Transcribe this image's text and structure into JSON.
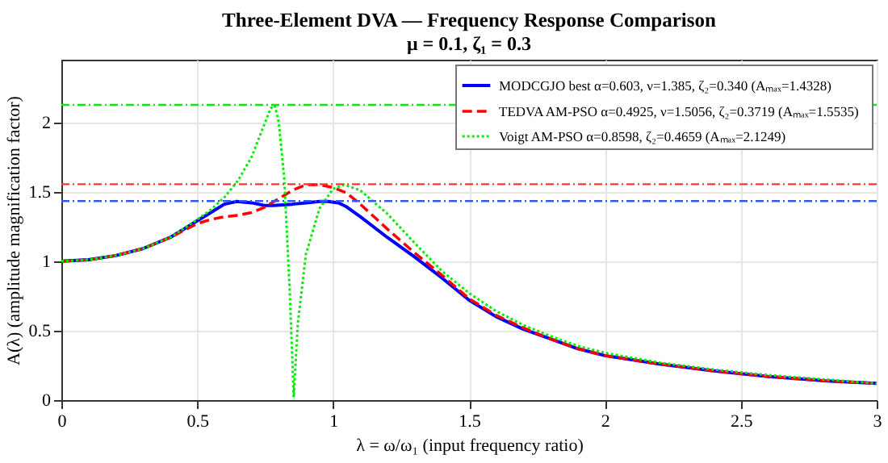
{
  "chart_data": {
    "type": "line",
    "title": "Three-Element DVA — Frequency Response Comparison",
    "subtitle": "μ = 0.1,  ζ₁ = 0.3",
    "xlabel": "λ = ω/ω₁   (input frequency ratio)",
    "ylabel": "A(λ)   (amplitude magnification factor)",
    "xlim": [
      0,
      3
    ],
    "xticks": [
      0,
      0.5,
      1,
      1.5,
      2,
      2.5,
      3
    ],
    "ylim": [
      0,
      2.45
    ],
    "yticks": [
      0,
      0.5,
      1,
      1.5,
      2
    ],
    "grid": true,
    "legend": "top right",
    "marker": "none",
    "series": [
      {
        "name": "MODCGJO best  α=0.603, ν=1.385, ζ₂=0.340  (Aₘₐₓ=1.4328)",
        "color": "#0000ff",
        "line_style": "solid",
        "x": [
          0,
          0.1,
          0.2,
          0.3,
          0.4,
          0.5,
          0.55,
          0.6,
          0.645,
          0.7,
          0.75,
          0.78,
          0.85,
          0.9,
          0.95,
          0.98,
          1.02,
          1.05,
          1.1,
          1.2,
          1.3,
          1.4,
          1.5,
          1.6,
          1.7,
          1.8,
          1.9,
          2.0,
          2.2,
          2.4,
          2.6,
          2.8,
          3.0
        ],
        "values": [
          1,
          1.01,
          1.04,
          1.09,
          1.17,
          1.29,
          1.35,
          1.41,
          1.43,
          1.42,
          1.4,
          1.4,
          1.41,
          1.42,
          1.43,
          1.43,
          1.42,
          1.39,
          1.32,
          1.17,
          1.03,
          0.88,
          0.72,
          0.6,
          0.51,
          0.44,
          0.37,
          0.32,
          0.26,
          0.21,
          0.17,
          0.14,
          0.12
        ]
      },
      {
        "name": "TEDVA AM-PSO  α=0.4925, ν=1.5056, ζ₂=0.3719  (Aₘₐₓ=1.5535)",
        "color": "#ff0000",
        "line_style": "dashed",
        "x": [
          0,
          0.1,
          0.2,
          0.3,
          0.4,
          0.5,
          0.55,
          0.6,
          0.65,
          0.7,
          0.75,
          0.8,
          0.85,
          0.9,
          0.95,
          1.0,
          1.05,
          1.1,
          1.2,
          1.3,
          1.4,
          1.5,
          1.6,
          1.7,
          1.8,
          1.9,
          2.0,
          2.2,
          2.4,
          2.6,
          2.8,
          3.0
        ],
        "values": [
          1,
          1.01,
          1.04,
          1.09,
          1.17,
          1.27,
          1.3,
          1.32,
          1.33,
          1.35,
          1.39,
          1.45,
          1.51,
          1.55,
          1.55,
          1.53,
          1.49,
          1.41,
          1.23,
          1.06,
          0.9,
          0.73,
          0.61,
          0.52,
          0.44,
          0.37,
          0.32,
          0.26,
          0.21,
          0.17,
          0.14,
          0.12
        ]
      },
      {
        "name": "Voigt AM-PSO  α=0.8598, ζ₂=0.4659  (Aₘₐₓ=2.1249)",
        "color": "#00ee00",
        "line_style": "dotted",
        "x": [
          0,
          0.1,
          0.2,
          0.3,
          0.4,
          0.5,
          0.55,
          0.6,
          0.65,
          0.7,
          0.74,
          0.77,
          0.785,
          0.8,
          0.82,
          0.84,
          0.855,
          0.87,
          0.9,
          0.95,
          1.0,
          1.04,
          1.1,
          1.2,
          1.3,
          1.4,
          1.5,
          1.6,
          1.7,
          1.8,
          1.9,
          2.0,
          2.2,
          2.4,
          2.6,
          2.8,
          3.0
        ],
        "values": [
          1,
          1.01,
          1.04,
          1.09,
          1.17,
          1.3,
          1.37,
          1.46,
          1.58,
          1.75,
          1.95,
          2.1,
          2.12,
          2.0,
          1.6,
          0.8,
          0.02,
          0.55,
          1.05,
          1.38,
          1.52,
          1.55,
          1.51,
          1.34,
          1.13,
          0.93,
          0.77,
          0.64,
          0.54,
          0.46,
          0.39,
          0.34,
          0.27,
          0.22,
          0.18,
          0.15,
          0.12
        ]
      }
    ],
    "ref_lines": [
      {
        "axis": "y",
        "value": 1.4328,
        "color": "#3355ff",
        "line_style": "dashed"
      },
      {
        "axis": "y",
        "value": 1.5535,
        "color": "#ff3333",
        "line_style": "dashed"
      },
      {
        "axis": "y",
        "value": 2.1249,
        "color": "#00ee00",
        "line_style": "dashed"
      }
    ]
  }
}
